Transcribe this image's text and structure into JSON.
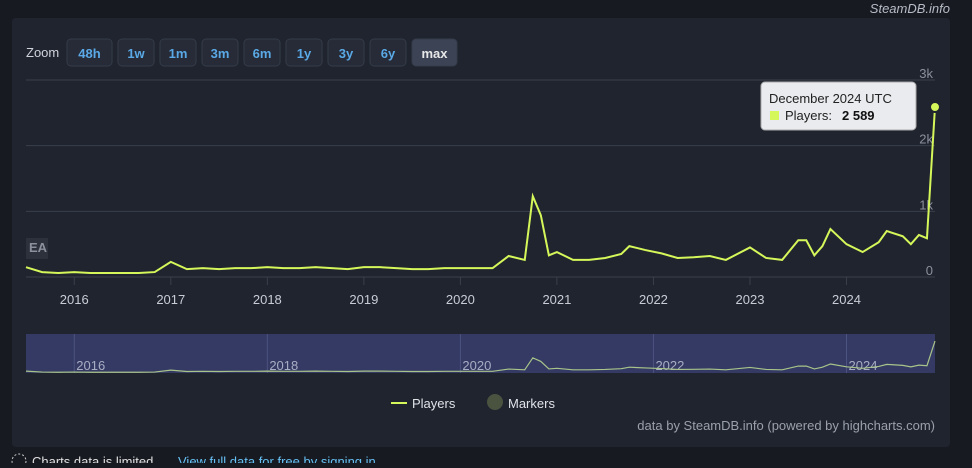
{
  "site": "SteamDB.info",
  "zoom_label": "Zoom",
  "zoom_buttons": [
    "48h",
    "1w",
    "1m",
    "3m",
    "6m",
    "1y",
    "3y",
    "6y",
    "max"
  ],
  "selected_zoom": "max",
  "footer": {
    "notice": "Charts data is limited.",
    "link": "View full data for free by signing in"
  },
  "chart_data": {
    "type": "line",
    "credits": "data by SteamDB.info (powered by highcharts.com)",
    "badge": "EA",
    "x": [
      "2015-07",
      "2015-09",
      "2015-11",
      "2016-01",
      "2016-03",
      "2016-05",
      "2016-07",
      "2016-09",
      "2016-11",
      "2017-01",
      "2017-03",
      "2017-05",
      "2017-07",
      "2017-09",
      "2017-11",
      "2018-01",
      "2018-03",
      "2018-05",
      "2018-07",
      "2018-09",
      "2018-11",
      "2019-01",
      "2019-03",
      "2019-05",
      "2019-07",
      "2019-09",
      "2019-11",
      "2020-01",
      "2020-03",
      "2020-05",
      "2020-07",
      "2020-09",
      "2020-10",
      "2020-11",
      "2020-12",
      "2021-01",
      "2021-03",
      "2021-05",
      "2021-07",
      "2021-09",
      "2021-10",
      "2021-12",
      "2022-02",
      "2022-04",
      "2022-06",
      "2022-08",
      "2022-10",
      "2023-01",
      "2023-03",
      "2023-05",
      "2023-07",
      "2023-08",
      "2023-09",
      "2023-10",
      "2023-11",
      "2024-01",
      "2024-03",
      "2024-05",
      "2024-06",
      "2024-08",
      "2024-09",
      "2024-10",
      "2024-11",
      "2024-12"
    ],
    "series": [
      {
        "name": "Players",
        "color": "#d5f75a",
        "values": [
          150,
          75,
          60,
          75,
          60,
          60,
          60,
          60,
          75,
          230,
          120,
          135,
          120,
          135,
          135,
          150,
          135,
          135,
          150,
          135,
          120,
          150,
          150,
          135,
          120,
          120,
          135,
          135,
          135,
          135,
          320,
          260,
          1230,
          940,
          330,
          380,
          260,
          260,
          290,
          350,
          470,
          410,
          360,
          290,
          300,
          320,
          260,
          450,
          290,
          260,
          560,
          560,
          330,
          470,
          730,
          500,
          380,
          530,
          700,
          620,
          500,
          640,
          590,
          2589
        ]
      }
    ],
    "markers": {
      "name": "Markers",
      "color": "#4a5240"
    },
    "xlim": [
      "2015-07",
      "2024-12"
    ],
    "xticks": [
      2016,
      2017,
      2018,
      2019,
      2020,
      2021,
      2022,
      2023,
      2024
    ],
    "navigator_xticks": [
      2016,
      2018,
      2020,
      2022,
      2024
    ],
    "ylim": [
      0,
      3000
    ],
    "yticks": [
      0,
      {
        "value": 1000,
        "label": "1k"
      },
      {
        "value": 2000,
        "label": "2k"
      },
      {
        "value": 3000,
        "label": "3k"
      }
    ],
    "tooltip": {
      "date": "December 2024 UTC",
      "label": "Players:",
      "value_label": "2 589"
    }
  }
}
